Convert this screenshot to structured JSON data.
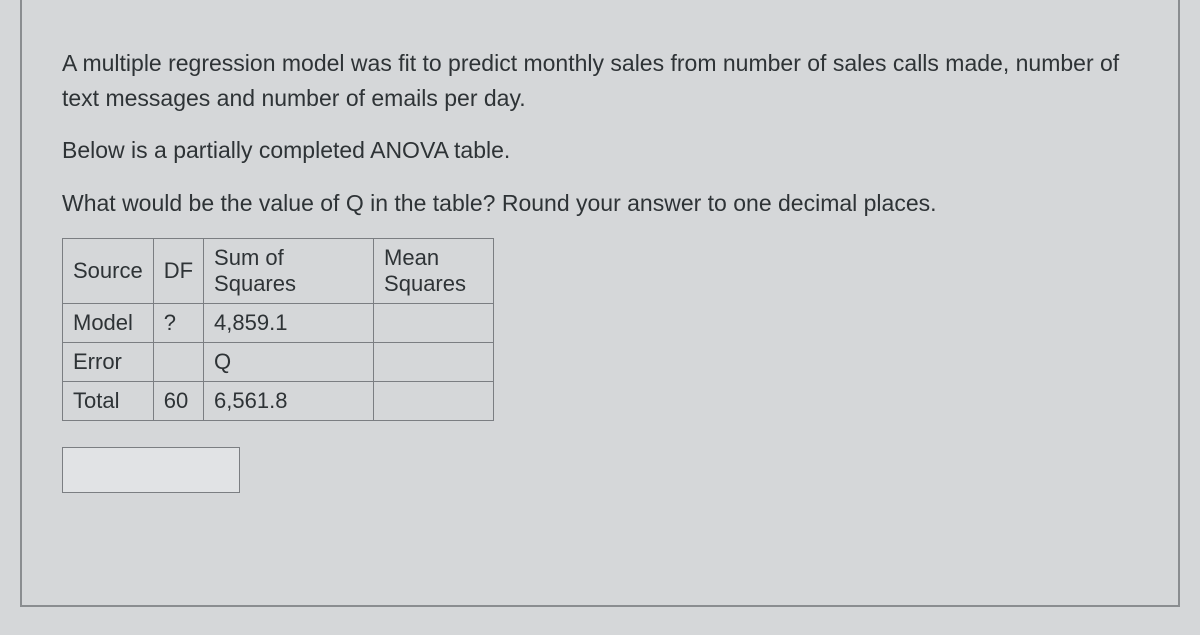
{
  "paragraphs": {
    "p1": "A multiple regression model was fit to predict monthly sales from number of sales calls made, number of text messages and number of emails per day.",
    "p2": "Below is a partially completed ANOVA table.",
    "p3": "What would be the value of Q  in the table? Round your answer to one decimal places."
  },
  "table": {
    "headers": {
      "source": "Source",
      "df": "DF",
      "ss": "Sum of Squares",
      "ms": "Mean Squares"
    },
    "rows": {
      "model": {
        "source": "Model",
        "df": "?",
        "ss": "4,859.1",
        "ms": ""
      },
      "error": {
        "source": "Error",
        "df": "",
        "ss": "Q",
        "ms": ""
      },
      "total": {
        "source": "Total",
        "df": "60",
        "ss": "6,561.8",
        "ms": ""
      }
    }
  },
  "answer": {
    "value": ""
  },
  "colors": {
    "background": "#d5d7d9",
    "border": "#7b7e82",
    "text": "#2e3336"
  }
}
